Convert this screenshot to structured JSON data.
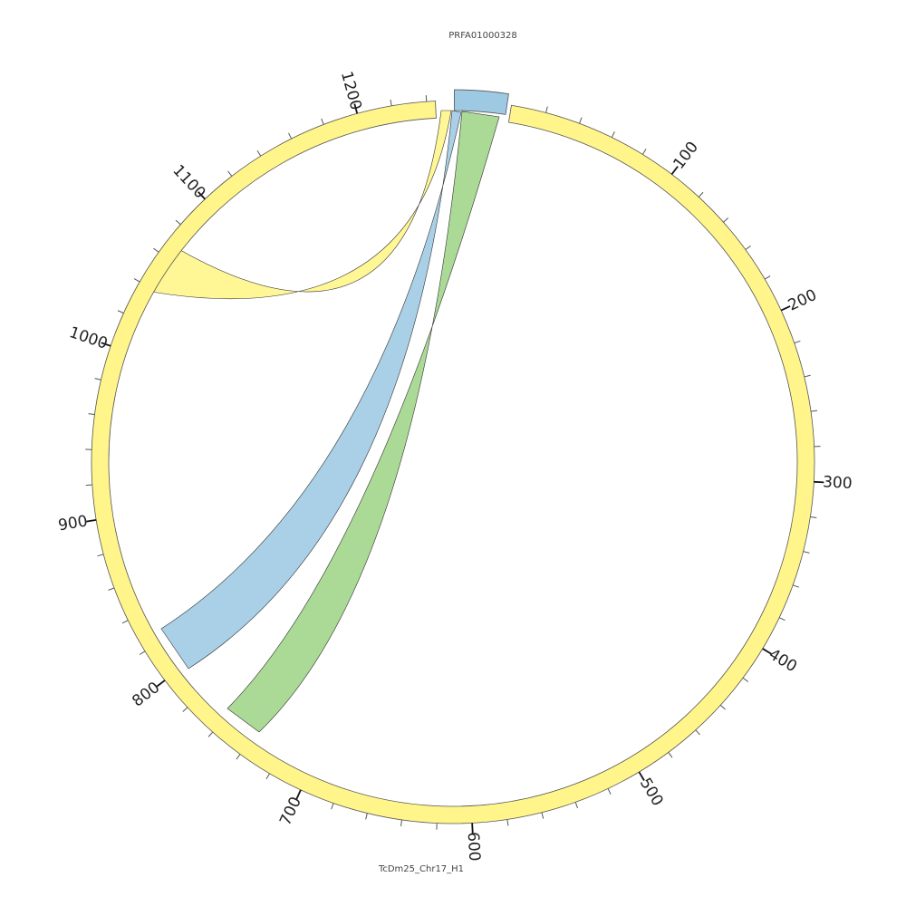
{
  "sequences": {
    "small": {
      "name": "PRFA01000328",
      "color": "#9dc9e3"
    },
    "large": {
      "name": "TcDm25_Chr17_H1",
      "color": "#fff58a",
      "tick_labels": [
        "100",
        "200",
        "300",
        "400",
        "500",
        "600",
        "700",
        "800",
        "900",
        "1000",
        "1100",
        "1200"
      ]
    }
  },
  "links": [
    {
      "name": "self-link",
      "from": "TcDm25_Chr17_H1",
      "to": "TcDm25_Chr17_H1",
      "color": "#fff58a"
    },
    {
      "name": "blue-link",
      "from": "PRFA01000328",
      "to": "TcDm25_Chr17_H1",
      "color": "#9dc9e3"
    },
    {
      "name": "green-link",
      "from": "PRFA01000328",
      "to": "TcDm25_Chr17_H1",
      "color": "#99d17f"
    }
  ]
}
